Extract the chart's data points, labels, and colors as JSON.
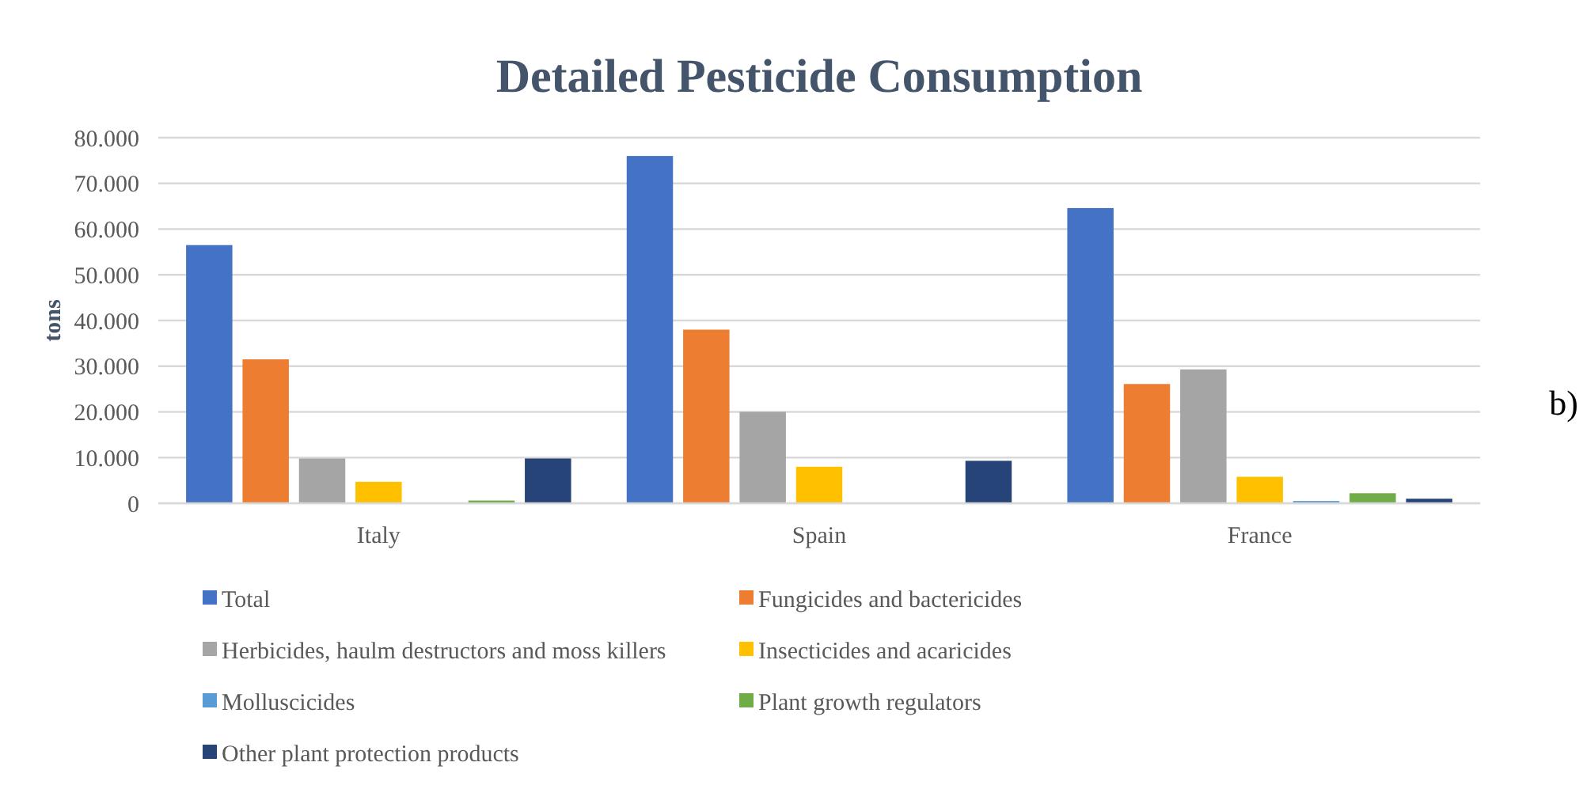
{
  "chart_data": {
    "type": "bar",
    "title": "Detailed Pesticide Consumption",
    "ylabel": "tons",
    "annotations": [
      "b)"
    ],
    "categories": [
      "Italy",
      "Spain",
      "France"
    ],
    "series": [
      {
        "name": "Total",
        "color": "#4472c4",
        "values": [
          56500,
          76000,
          64600
        ]
      },
      {
        "name": "Fungicides and bactericides",
        "color": "#ed7d31",
        "values": [
          31500,
          38000,
          26100
        ]
      },
      {
        "name": "Herbicides, haulm destructors and moss killers",
        "color": "#a5a5a5",
        "values": [
          9800,
          20000,
          29300
        ]
      },
      {
        "name": "Insecticides and acaricides",
        "color": "#ffc000",
        "values": [
          4700,
          8000,
          5800
        ]
      },
      {
        "name": "Molluscicides",
        "color": "#5b9bd5",
        "values": [
          0,
          0,
          500
        ]
      },
      {
        "name": "Plant growth regulators",
        "color": "#70ad47",
        "values": [
          600,
          0,
          2200
        ]
      },
      {
        "name": "Other plant protection products",
        "color": "#264478",
        "values": [
          9800,
          9300,
          1000
        ]
      }
    ],
    "ylim": [
      0,
      80000
    ],
    "yticks": [
      {
        "value": 0,
        "label": "0"
      },
      {
        "value": 10000,
        "label": "10.000"
      },
      {
        "value": 20000,
        "label": "20.000"
      },
      {
        "value": 30000,
        "label": "30.000"
      },
      {
        "value": 40000,
        "label": "40.000"
      },
      {
        "value": 50000,
        "label": "50.000"
      },
      {
        "value": 60000,
        "label": "60.000"
      },
      {
        "value": 70000,
        "label": "70.000"
      },
      {
        "value": 80000,
        "label": "80.000"
      }
    ],
    "grid": "y",
    "legend": "bottom"
  }
}
